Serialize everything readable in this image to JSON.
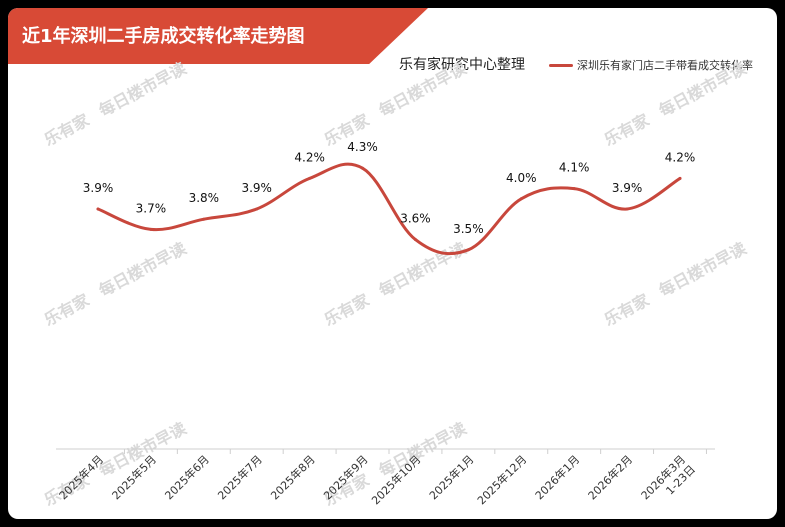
{
  "header": {
    "title": "近1年深圳二手房成交转化率走势图",
    "source": "乐有家研究中心整理"
  },
  "watermark": {
    "logo": "乐有家",
    "text": "每日楼市早读"
  },
  "colors": {
    "banner": "#d84a36",
    "line": "#c8473c",
    "axis": "#cfcfcf"
  },
  "chart_data": {
    "type": "line",
    "title": "近1年深圳二手房成交转化率走势图",
    "categories": [
      "2025年4月",
      "2025年5月",
      "2025年6月",
      "2025年7月",
      "2025年8月",
      "2025年9月",
      "2025年10月",
      "2025年1月",
      "2025年12月",
      "2026年1月",
      "2026年2月",
      "2026年3月 1-23日"
    ],
    "series": [
      {
        "name": "深圳乐有家门店二手带看成交转化率",
        "values": [
          3.9,
          3.7,
          3.8,
          3.9,
          4.2,
          4.3,
          3.6,
          3.5,
          4.0,
          4.1,
          3.9,
          4.2
        ],
        "labels": [
          "3.9%",
          "3.7%",
          "3.8%",
          "3.9%",
          "4.2%",
          "4.3%",
          "3.6%",
          "3.5%",
          "4.0%",
          "4.1%",
          "3.9%",
          "4.2%"
        ]
      }
    ],
    "grid": false,
    "legend_position": "top-right"
  }
}
